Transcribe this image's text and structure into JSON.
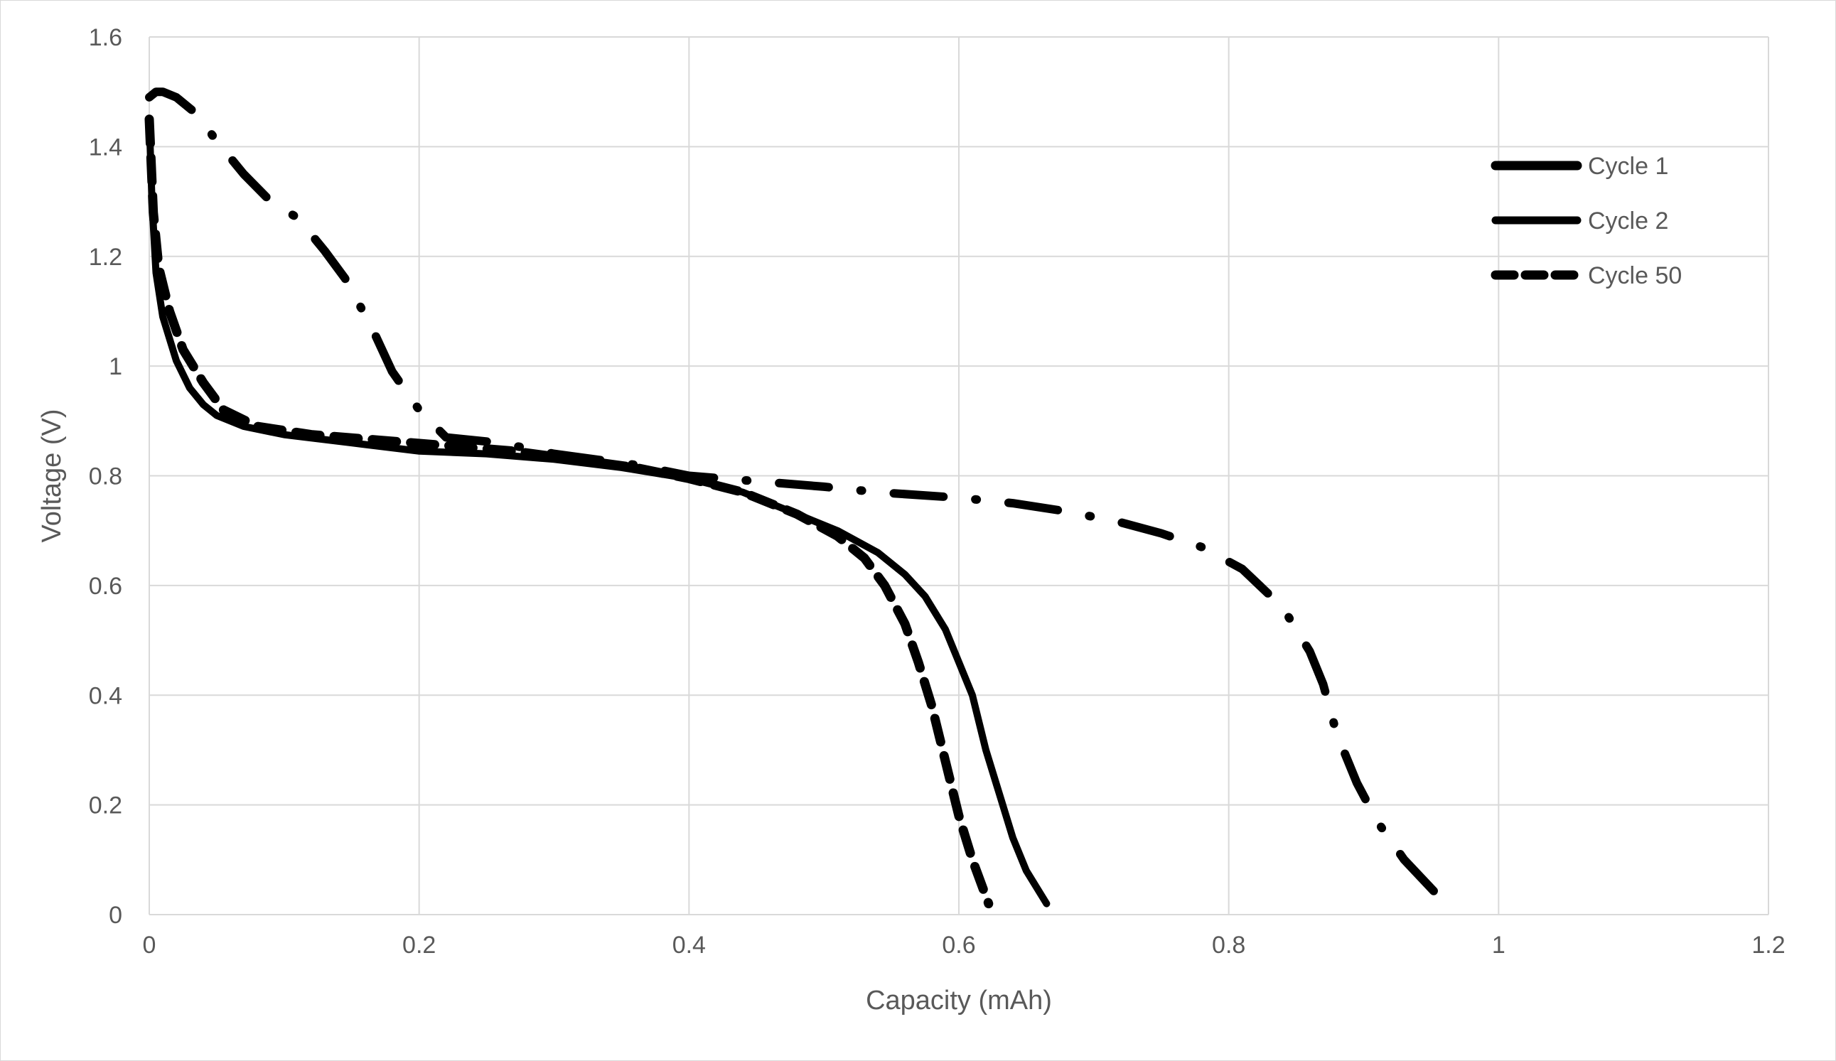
{
  "chart_data": {
    "type": "line",
    "title": "",
    "xlabel": "Capacity (mAh)",
    "ylabel": "Voltage (V)",
    "xlim": [
      0,
      1.2
    ],
    "ylim": [
      0,
      1.6
    ],
    "x_ticks": [
      "0",
      "0.2",
      "0.4",
      "0.6",
      "0.8",
      "1",
      "1.2"
    ],
    "y_ticks": [
      "0",
      "0.2",
      "0.4",
      "0.6",
      "0.8",
      "1",
      "1.2",
      "1.4",
      "1.6"
    ],
    "grid": true,
    "legend_position": "top-right",
    "line_color": "#000000",
    "grid_color": "#d9d9d9",
    "series": [
      {
        "name": "Cycle 1",
        "style": "dash-dot",
        "points": [
          [
            0,
            1.49
          ],
          [
            0.005,
            1.5
          ],
          [
            0.01,
            1.5
          ],
          [
            0.02,
            1.49
          ],
          [
            0.035,
            1.46
          ],
          [
            0.05,
            1.41
          ],
          [
            0.07,
            1.35
          ],
          [
            0.09,
            1.3
          ],
          [
            0.11,
            1.27
          ],
          [
            0.13,
            1.21
          ],
          [
            0.145,
            1.16
          ],
          [
            0.165,
            1.07
          ],
          [
            0.18,
            0.99
          ],
          [
            0.2,
            0.92
          ],
          [
            0.22,
            0.87
          ],
          [
            0.26,
            0.86
          ],
          [
            0.3,
            0.84
          ],
          [
            0.36,
            0.82
          ],
          [
            0.4,
            0.8
          ],
          [
            0.45,
            0.79
          ],
          [
            0.5,
            0.78
          ],
          [
            0.54,
            0.77
          ],
          [
            0.6,
            0.76
          ],
          [
            0.64,
            0.75
          ],
          [
            0.68,
            0.735
          ],
          [
            0.72,
            0.715
          ],
          [
            0.75,
            0.695
          ],
          [
            0.78,
            0.67
          ],
          [
            0.81,
            0.63
          ],
          [
            0.84,
            0.56
          ],
          [
            0.86,
            0.48
          ],
          [
            0.87,
            0.42
          ],
          [
            0.88,
            0.33
          ],
          [
            0.895,
            0.24
          ],
          [
            0.91,
            0.17
          ],
          [
            0.93,
            0.1
          ],
          [
            0.955,
            0.035
          ]
        ]
      },
      {
        "name": "Cycle 2",
        "style": "solid",
        "points": [
          [
            0,
            1.45
          ],
          [
            0.002,
            1.3
          ],
          [
            0.005,
            1.17
          ],
          [
            0.01,
            1.09
          ],
          [
            0.02,
            1.01
          ],
          [
            0.03,
            0.96
          ],
          [
            0.04,
            0.93
          ],
          [
            0.05,
            0.91
          ],
          [
            0.07,
            0.89
          ],
          [
            0.1,
            0.875
          ],
          [
            0.15,
            0.86
          ],
          [
            0.2,
            0.845
          ],
          [
            0.25,
            0.84
          ],
          [
            0.3,
            0.83
          ],
          [
            0.35,
            0.815
          ],
          [
            0.4,
            0.795
          ],
          [
            0.44,
            0.77
          ],
          [
            0.48,
            0.73
          ],
          [
            0.51,
            0.7
          ],
          [
            0.54,
            0.66
          ],
          [
            0.56,
            0.62
          ],
          [
            0.575,
            0.58
          ],
          [
            0.59,
            0.52
          ],
          [
            0.6,
            0.46
          ],
          [
            0.61,
            0.4
          ],
          [
            0.62,
            0.3
          ],
          [
            0.63,
            0.22
          ],
          [
            0.64,
            0.14
          ],
          [
            0.65,
            0.08
          ],
          [
            0.665,
            0.02
          ]
        ]
      },
      {
        "name": "Cycle 50",
        "style": "dashed",
        "points": [
          [
            0,
            1.45
          ],
          [
            0.003,
            1.28
          ],
          [
            0.007,
            1.18
          ],
          [
            0.015,
            1.1
          ],
          [
            0.025,
            1.03
          ],
          [
            0.04,
            0.97
          ],
          [
            0.055,
            0.92
          ],
          [
            0.08,
            0.89
          ],
          [
            0.12,
            0.875
          ],
          [
            0.17,
            0.865
          ],
          [
            0.22,
            0.855
          ],
          [
            0.27,
            0.845
          ],
          [
            0.3,
            0.835
          ],
          [
            0.33,
            0.825
          ],
          [
            0.36,
            0.815
          ],
          [
            0.4,
            0.795
          ],
          [
            0.44,
            0.77
          ],
          [
            0.48,
            0.73
          ],
          [
            0.51,
            0.69
          ],
          [
            0.53,
            0.65
          ],
          [
            0.545,
            0.6
          ],
          [
            0.56,
            0.53
          ],
          [
            0.57,
            0.46
          ],
          [
            0.58,
            0.38
          ],
          [
            0.59,
            0.28
          ],
          [
            0.6,
            0.18
          ],
          [
            0.61,
            0.1
          ],
          [
            0.622,
            0.02
          ]
        ]
      }
    ]
  }
}
